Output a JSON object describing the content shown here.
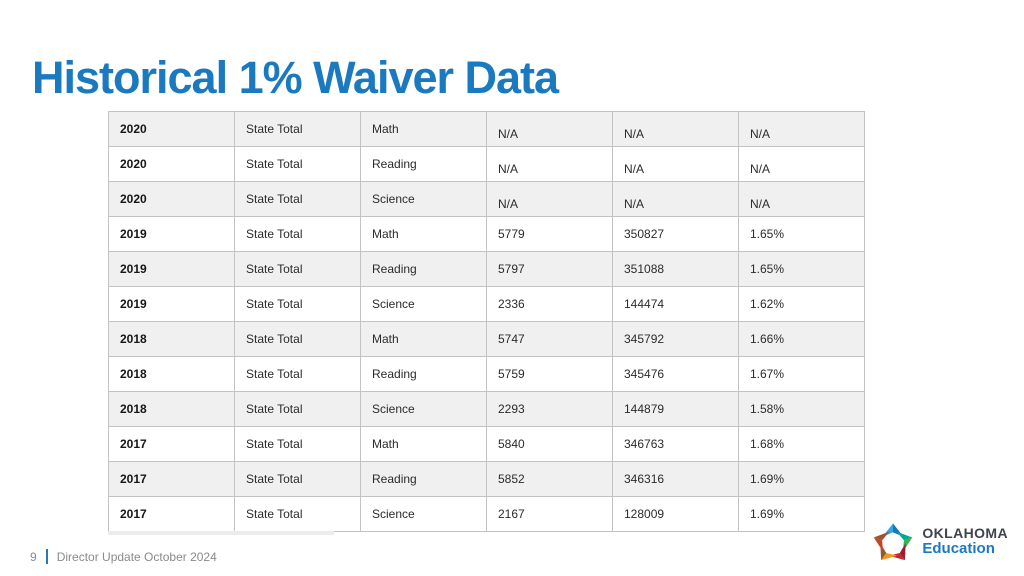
{
  "slide": {
    "title": "Historical 1% Waiver Data"
  },
  "table": {
    "rows": [
      [
        "2020",
        "State Total",
        "Math",
        "N/A",
        "N/A",
        "N/A"
      ],
      [
        "2020",
        "State Total",
        "Reading",
        "N/A",
        "N/A",
        "N/A"
      ],
      [
        "2020",
        "State Total",
        "Science",
        "N/A",
        "N/A",
        "N/A"
      ],
      [
        "2019",
        "State Total",
        "Math",
        "5779",
        "350827",
        "1.65%"
      ],
      [
        "2019",
        "State Total",
        "Reading",
        "5797",
        "351088",
        "1.65%"
      ],
      [
        "2019",
        "State Total",
        "Science",
        "2336",
        "144474",
        "1.62%"
      ],
      [
        "2018",
        "State Total",
        "Math",
        "5747",
        "345792",
        "1.66%"
      ],
      [
        "2018",
        "State Total",
        "Reading",
        "5759",
        "345476",
        "1.67%"
      ],
      [
        "2018",
        "State Total",
        "Science",
        "2293",
        "144879",
        "1.58%"
      ],
      [
        "2017",
        "State Total",
        "Math",
        "5840",
        "346763",
        "1.68%"
      ],
      [
        "2017",
        "State Total",
        "Reading",
        "5852",
        "346316",
        "1.69%"
      ],
      [
        "2017",
        "State Total",
        "Science",
        "2167",
        "128009",
        "1.69%"
      ]
    ]
  },
  "footer": {
    "page_number": "9",
    "text": "Director Update October 2024"
  },
  "logo": {
    "org": "OKLAHOMA",
    "dept": "Education",
    "star_colors": [
      "#29ABE2",
      "#1B75BC",
      "#00A79D",
      "#39B54A",
      "#9E1B32",
      "#C1272D",
      "#F7941E",
      "#8C5A33",
      "#CC4125",
      "#A0522D"
    ]
  },
  "colors": {
    "accent": "#1B79C0",
    "footer_bar": "#2E75B6",
    "table_border": "#C3C3C3",
    "row_shade": "#F0F0F0"
  }
}
